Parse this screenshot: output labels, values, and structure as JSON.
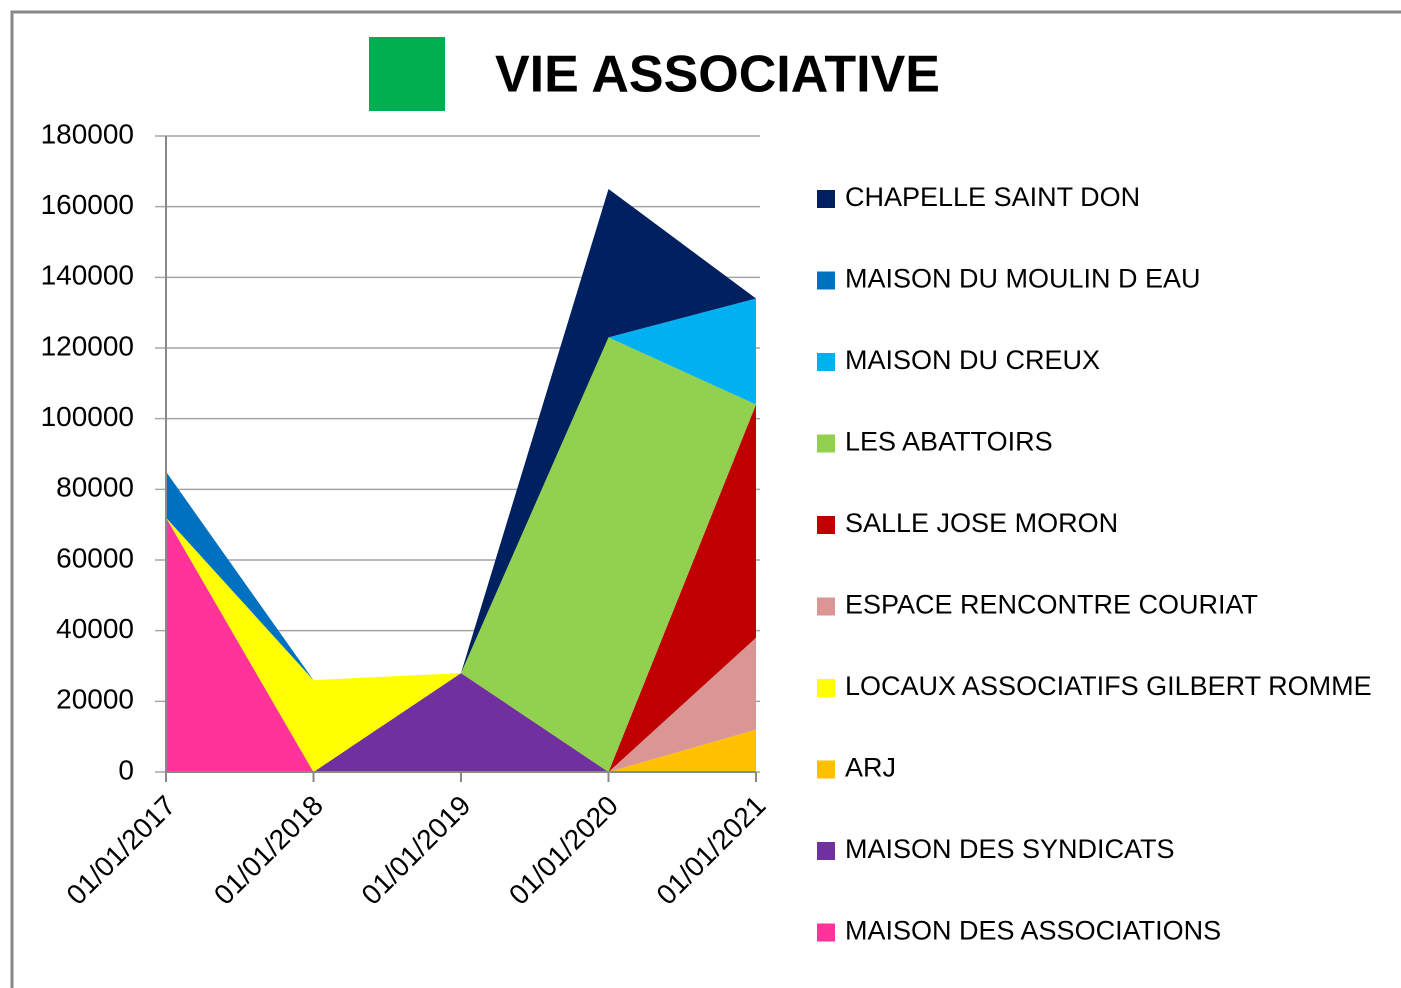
{
  "chart_data": {
    "type": "stacked_area",
    "title": "VIE ASSOCIATIVE",
    "title_marker_color": "#00b050",
    "categories": [
      "01/01/2017",
      "01/01/2018",
      "01/01/2019",
      "01/01/2020",
      "01/01/2021"
    ],
    "series": [
      {
        "name": "CHAPELLE SAINT DON",
        "color": "#002060",
        "values": [
          0,
          0,
          0,
          42000,
          0
        ]
      },
      {
        "name": "MAISON DU MOULIN D EAU",
        "color": "#0070c0",
        "values": [
          13000,
          0,
          0,
          0,
          0
        ]
      },
      {
        "name": "MAISON DU CREUX",
        "color": "#00b0f0",
        "values": [
          0,
          0,
          0,
          0,
          30000
        ]
      },
      {
        "name": "LES ABATTOIRS",
        "color": "#92d050",
        "values": [
          0,
          0,
          0,
          123000,
          0
        ]
      },
      {
        "name": "SALLE JOSE MORON",
        "color": "#c00000",
        "values": [
          0,
          0,
          0,
          0,
          66000
        ]
      },
      {
        "name": "ESPACE RENCONTRE COURIAT",
        "color": "#da9694",
        "values": [
          0,
          0,
          0,
          0,
          26000
        ]
      },
      {
        "name": "LOCAUX ASSOCIATIFS GILBERT ROMME",
        "color": "#ffff00",
        "values": [
          0,
          26000,
          0,
          0,
          0
        ]
      },
      {
        "name": "ARJ",
        "color": "#ffc000",
        "values": [
          0,
          0,
          0,
          0,
          12000
        ]
      },
      {
        "name": "MAISON DES SYNDICATS",
        "color": "#7030a0",
        "values": [
          0,
          0,
          28000,
          0,
          0
        ]
      },
      {
        "name": "MAISON DES ASSOCIATIONS",
        "color": "#ff3399",
        "values": [
          72000,
          0,
          0,
          0,
          0
        ]
      }
    ],
    "ylim": [
      0,
      180000
    ],
    "yticks": [
      0,
      20000,
      40000,
      60000,
      80000,
      100000,
      120000,
      140000,
      160000,
      180000
    ],
    "grid": true,
    "legend": "right"
  }
}
